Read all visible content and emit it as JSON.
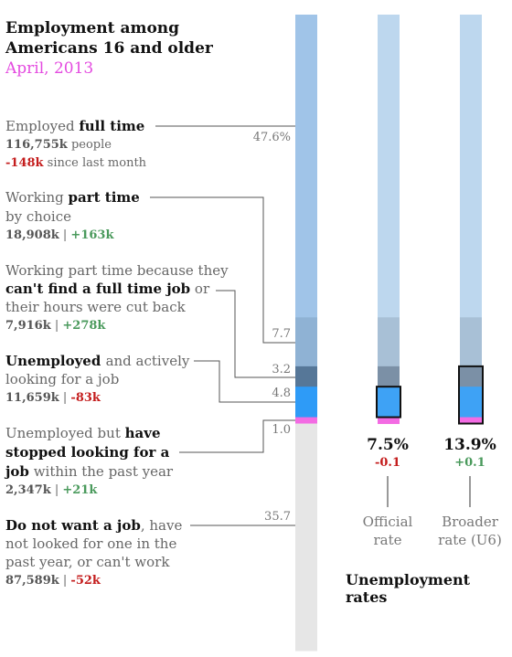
{
  "title_line1": "Employment among",
  "title_line2": "Americans 16 and older",
  "subtitle": "April, 2013",
  "chart_data": {
    "type": "bar",
    "stacked": true,
    "ylim": [
      0,
      100
    ],
    "segments": [
      {
        "key": "full_time",
        "value": 47.6,
        "label": "47.6%",
        "color": "#a0c4e8",
        "rate_color": "#bdd7ee"
      },
      {
        "key": "part_time_choice",
        "value": 7.7,
        "label": "7.7",
        "color": "#8fb2d4",
        "rate_color": "#a8c0d6"
      },
      {
        "key": "part_time_econ",
        "value": 3.2,
        "label": "3.2",
        "color": "#567798",
        "rate_color": "#7b90a6"
      },
      {
        "key": "unemployed",
        "value": 4.8,
        "label": "4.8",
        "color": "#2e9bf7",
        "rate_color": "#3ea2f5"
      },
      {
        "key": "stopped_looking",
        "value": 1.0,
        "label": "1.0",
        "color": "#f36be3",
        "rate_color": "#f36be3"
      },
      {
        "key": "not_want",
        "value": 35.7,
        "label": "35.7",
        "color": "#e6e6e6",
        "rate_color": "#ffffff"
      }
    ],
    "rates": [
      {
        "key": "official",
        "value": "7.5%",
        "change": "-0.1",
        "change_sign": "neg",
        "label_line1": "Official",
        "label_line2": "rate",
        "highlight": [
          "unemployed"
        ]
      },
      {
        "key": "broader",
        "value": "13.9%",
        "change": "+0.1",
        "change_sign": "pos",
        "label_line1": "Broader",
        "label_line2": "rate (U6)",
        "highlight": [
          "part_time_econ",
          "unemployed",
          "stopped_looking"
        ]
      }
    ],
    "rates_title": "Unemployment rates"
  },
  "categories": {
    "full_time": {
      "pre": "Employed ",
      "bold": "full time",
      "count": "116,755k",
      "count_suffix": " people",
      "change": "-148k",
      "change_suffix": " since last month"
    },
    "part_time_choice": {
      "pre1": "Working ",
      "bold": "part time",
      "line2": "by choice",
      "count": "18,908k",
      "sep": " | ",
      "change": "+163k"
    },
    "part_time_econ": {
      "line1": "Working part time because they",
      "bold": "can't find a full time job",
      "post": " or",
      "line3": "their hours were cut back",
      "count": "7,916k",
      "sep": " | ",
      "change": "+278k"
    },
    "unemployed": {
      "bold": "Unemployed ",
      "post": " and actively",
      "line2": "looking for a job",
      "count": "11,659k",
      "sep": " | ",
      "change": "-83k"
    },
    "stopped_looking": {
      "pre": "Unemployed but ",
      "bold1": "have",
      "bold2": "stopped looking for a",
      "bold3": "job",
      "post3": " within the past year",
      "count": "2,347k",
      "sep": " | ",
      "change": "+21k"
    },
    "not_want": {
      "bold": "Do not want a job",
      "post": ", have",
      "line2": "not looked for one in the",
      "line3": "past year, or can't work",
      "count": "87,589k",
      "sep": " | ",
      "change": "-52k"
    }
  }
}
